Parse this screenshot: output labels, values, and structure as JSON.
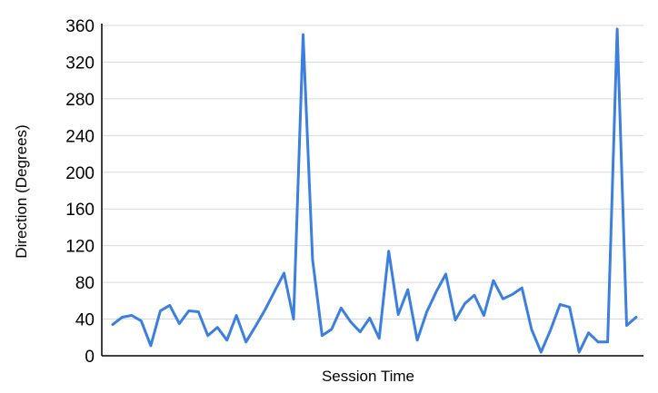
{
  "chart_data": {
    "type": "line",
    "title": "",
    "xlabel": "Session Time",
    "ylabel": "Direction (Degrees)",
    "ylim": [
      0,
      360
    ],
    "yticks": [
      0,
      40,
      80,
      120,
      160,
      200,
      240,
      280,
      320,
      360
    ],
    "grid": true,
    "legend": "none",
    "colors": {
      "line": "#3b7fe0",
      "grid": "#d9d9d9",
      "axis": "#000000"
    },
    "series": [
      {
        "values": [
          34,
          42,
          44,
          38,
          11,
          49,
          55,
          35,
          49,
          48,
          22,
          31,
          17,
          44,
          15,
          32,
          50,
          70,
          90,
          40,
          350,
          105,
          22,
          29,
          52,
          37,
          26,
          41,
          19,
          114,
          45,
          72,
          17,
          48,
          70,
          89,
          39,
          57,
          66,
          44,
          82,
          62,
          67,
          74,
          29,
          4,
          28,
          56,
          53,
          4,
          25,
          15,
          15,
          356,
          33,
          42
        ]
      }
    ]
  }
}
